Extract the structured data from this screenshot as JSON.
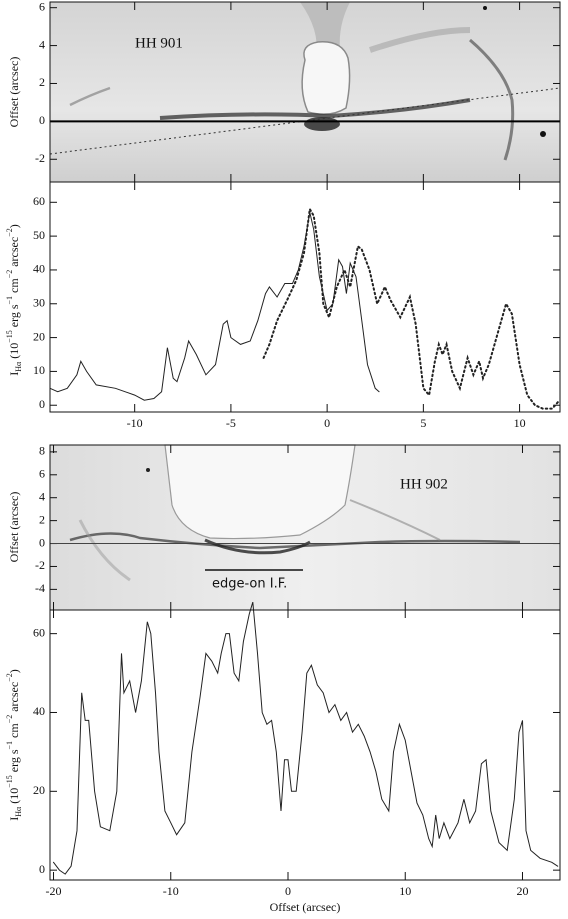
{
  "chart_data": [
    {
      "type": "image",
      "ylabel": "Offset (arcsec)",
      "annotations": [
        "HH 901"
      ],
      "xlim": [
        -14.4,
        12.1
      ],
      "xticks": [
        -10,
        -5,
        0,
        5,
        10
      ],
      "ylim": [
        -3.2,
        6.3
      ],
      "yticks": [
        -2,
        0,
        2,
        4,
        6
      ],
      "hline": 0
    },
    {
      "type": "line",
      "ylabel": [
        "I",
        "Hα",
        " (10",
        "−15",
        " erg s",
        "−1",
        " cm",
        "−2",
        " arcsec",
        "−2",
        ")"
      ],
      "xlim": [
        -14.4,
        12.1
      ],
      "xticks": [
        -10,
        -5,
        0,
        5,
        10
      ],
      "ylim": [
        -2,
        66
      ],
      "yticks": [
        0,
        10,
        20,
        30,
        40,
        50,
        60
      ],
      "series": [
        {
          "color": "#222222",
          "style": "solid",
          "x": [
            -14.4,
            -14,
            -13.5,
            -13,
            -12.8,
            -12.5,
            -12,
            -11,
            -10,
            -9.5,
            -9,
            -8.6,
            -8.3,
            -8,
            -7.8,
            -7.4,
            -7.2,
            -6.8,
            -6.3,
            -5.8,
            -5.4,
            -5.2,
            -5,
            -4.5,
            -4,
            -3.6,
            -3.2,
            -3,
            -2.6,
            -2.2,
            -1.8,
            -1.5,
            -1.2,
            -0.9,
            -0.7,
            -0.4,
            0,
            0.3,
            0.6,
            0.8,
            1,
            1.2,
            1.5,
            1.8,
            2.1,
            2.5,
            2.7
          ],
          "values": [
            5,
            4,
            5,
            9,
            13,
            10,
            6,
            5,
            3,
            1.5,
            2,
            4,
            17,
            8,
            7,
            14,
            19,
            15,
            9,
            12,
            24,
            25,
            20,
            18,
            19,
            25,
            33,
            35,
            32,
            36,
            36,
            40,
            47,
            57,
            52,
            38,
            28,
            30,
            43,
            41,
            33,
            42,
            38,
            25,
            12,
            5,
            4
          ]
        },
        {
          "color": "#222222",
          "style": "dotted",
          "x": [
            -3.3,
            -3,
            -2.6,
            -2,
            -1.6,
            -1.2,
            -0.9,
            -0.7,
            -0.4,
            -0.2,
            0.1,
            0.5,
            0.9,
            1.2,
            1.6,
            1.8,
            2.2,
            2.6,
            3,
            3.3,
            3.8,
            4.3,
            4.6,
            5,
            5.3,
            5.6,
            5.8,
            6,
            6.2,
            6.5,
            6.9,
            7.3,
            7.6,
            7.9,
            8.1,
            8.4,
            9,
            9.3,
            9.6,
            10,
            10.4,
            10.8,
            11.2,
            11.7,
            12
          ],
          "values": [
            14,
            18,
            25,
            32,
            37,
            45,
            58,
            56,
            45,
            30,
            26,
            35,
            40,
            35,
            47,
            46,
            40,
            30,
            35,
            31,
            26,
            32,
            24,
            5,
            3,
            13,
            18,
            15,
            18,
            10,
            5,
            14,
            9,
            13,
            8,
            12,
            24,
            30,
            27,
            12,
            3,
            0,
            -1,
            -1,
            1
          ]
        }
      ]
    },
    {
      "type": "image",
      "ylabel": "Offset (arcsec)",
      "annotations": [
        "HH 902",
        "edge-on I.F."
      ],
      "xlim": [
        -20.3,
        23.2
      ],
      "xticks": [
        -20,
        -10,
        0,
        10,
        20
      ],
      "ylim": [
        -5.8,
        8.6
      ],
      "yticks": [
        -4,
        -2,
        0,
        2,
        4,
        6,
        8
      ],
      "hline": 0
    },
    {
      "type": "line",
      "ylabel": [
        "I",
        "Hα",
        " (10",
        "−15",
        " erg s",
        "−1",
        " cm",
        "−2",
        " arcsec",
        "−2",
        ")"
      ],
      "xlabel": "Offset (arcsec)",
      "xlim": [
        -20.3,
        23.2
      ],
      "xticks": [
        -20,
        -10,
        0,
        10,
        20
      ],
      "ylim": [
        -2.5,
        66
      ],
      "yticks": [
        0,
        20,
        40,
        60
      ],
      "series": [
        {
          "color": "#222222",
          "style": "solid",
          "x": [
            -20,
            -19.5,
            -19,
            -18.5,
            -18,
            -17.6,
            -17.3,
            -17,
            -16.5,
            -16,
            -15.2,
            -14.6,
            -14.2,
            -14,
            -13.5,
            -13,
            -12.5,
            -12,
            -11.7,
            -11.3,
            -11,
            -10.5,
            -10,
            -9.5,
            -8.8,
            -8.2,
            -7.5,
            -7,
            -6.5,
            -6,
            -5.7,
            -5.3,
            -5,
            -4.6,
            -4.2,
            -3.8,
            -3.3,
            -3,
            -2.6,
            -2.2,
            -1.8,
            -1.4,
            -1,
            -0.6,
            -0.3,
            0,
            0.3,
            0.7,
            1.2,
            1.6,
            2,
            2.5,
            3,
            3.5,
            4,
            4.5,
            5,
            5.5,
            6,
            6.5,
            7,
            7.5,
            8,
            8.6,
            9,
            9.5,
            10,
            10.5,
            11,
            11.5,
            12,
            12.3,
            12.6,
            12.9,
            13.3,
            13.8,
            14.5,
            15,
            15.5,
            16,
            16.5,
            16.9,
            17.3,
            18,
            18.7,
            19.3,
            19.7,
            20,
            20.3,
            20.7,
            21.5,
            22.5,
            23
          ],
          "values": [
            2,
            0,
            -1,
            1,
            10,
            45,
            38,
            38,
            20,
            11,
            10,
            20,
            55,
            45,
            48,
            40,
            48,
            63,
            60,
            45,
            30,
            15,
            12,
            9,
            12,
            30,
            44,
            55,
            53,
            50,
            55,
            60,
            60,
            50,
            48,
            58,
            65,
            68,
            55,
            40,
            37,
            38,
            30,
            15,
            28,
            28,
            20,
            20,
            35,
            50,
            52,
            47,
            45,
            40,
            42,
            38,
            40,
            35,
            37,
            34,
            30,
            25,
            18,
            15,
            30,
            37,
            33,
            25,
            17,
            14,
            8,
            6,
            14,
            8,
            12,
            8,
            12,
            18,
            12,
            15,
            27,
            28,
            15,
            7,
            5,
            18,
            35,
            38,
            10,
            5,
            3,
            2,
            1
          ]
        }
      ]
    }
  ]
}
